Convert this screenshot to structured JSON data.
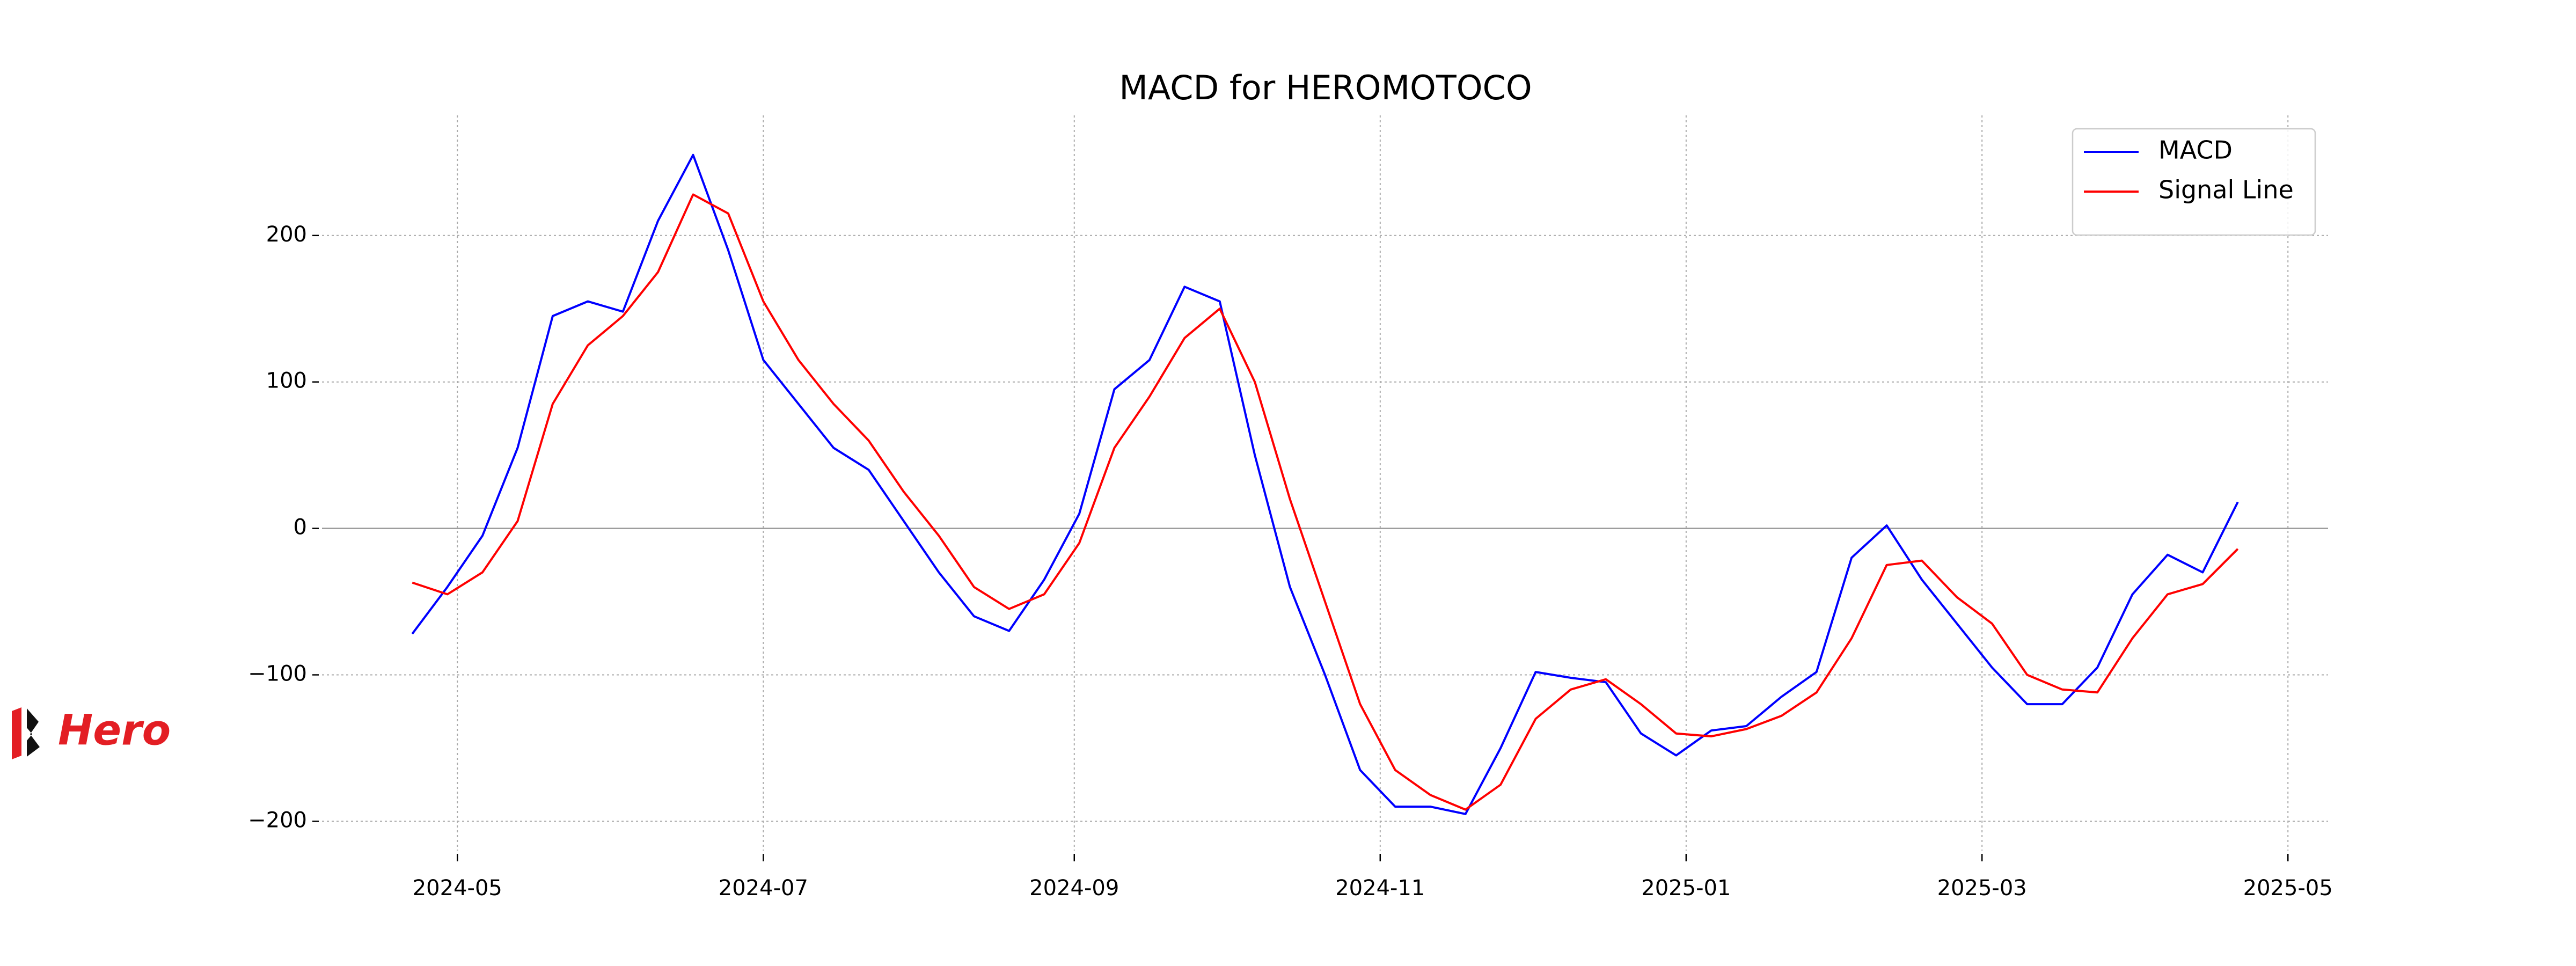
{
  "chart_data": {
    "type": "line",
    "title": "MACD for HEROMOTOCO",
    "logo": "Hero",
    "x": [
      "2024-04-22",
      "2024-04-29",
      "2024-05-06",
      "2024-05-13",
      "2024-05-20",
      "2024-05-27",
      "2024-06-03",
      "2024-06-10",
      "2024-06-17",
      "2024-06-24",
      "2024-07-01",
      "2024-07-08",
      "2024-07-15",
      "2024-07-22",
      "2024-07-29",
      "2024-08-05",
      "2024-08-12",
      "2024-08-19",
      "2024-08-26",
      "2024-09-02",
      "2024-09-09",
      "2024-09-16",
      "2024-09-23",
      "2024-09-30",
      "2024-10-07",
      "2024-10-14",
      "2024-10-21",
      "2024-10-28",
      "2024-11-04",
      "2024-11-11",
      "2024-11-18",
      "2024-11-25",
      "2024-12-02",
      "2024-12-09",
      "2024-12-16",
      "2024-12-23",
      "2024-12-30",
      "2025-01-06",
      "2025-01-13",
      "2025-01-20",
      "2025-01-27",
      "2025-02-03",
      "2025-02-10",
      "2025-02-17",
      "2025-02-24",
      "2025-03-03",
      "2025-03-10",
      "2025-03-17",
      "2025-03-24",
      "2025-03-31",
      "2025-04-07",
      "2025-04-14",
      "2025-04-21"
    ],
    "series": [
      {
        "name": "MACD",
        "color": "#0000ff",
        "values": [
          -72,
          -40,
          -5,
          55,
          145,
          155,
          148,
          210,
          255,
          190,
          115,
          85,
          55,
          40,
          5,
          -30,
          -60,
          -70,
          -35,
          10,
          95,
          115,
          165,
          155,
          50,
          -40,
          -100,
          -165,
          -190,
          -190,
          -195,
          -150,
          -98,
          -102,
          -105,
          -140,
          -155,
          -138,
          -135,
          -115,
          -98,
          -20,
          2,
          -35,
          -65,
          -95,
          -120,
          -120,
          -95,
          -45,
          -18,
          -30,
          18
        ]
      },
      {
        "name": "Signal Line",
        "color": "#ff0000",
        "values": [
          -37,
          -45,
          -30,
          5,
          85,
          125,
          145,
          175,
          228,
          215,
          155,
          115,
          85,
          60,
          25,
          -5,
          -40,
          -55,
          -45,
          -10,
          55,
          90,
          130,
          150,
          100,
          20,
          -50,
          -120,
          -165,
          -182,
          -192,
          -175,
          -130,
          -110,
          -103,
          -120,
          -140,
          -142,
          -137,
          -128,
          -112,
          -75,
          -25,
          -22,
          -47,
          -65,
          -100,
          -110,
          -112,
          -75,
          -45,
          -38,
          -14
        ]
      }
    ],
    "xlim": [
      "2024-04-04",
      "2025-05-09"
    ],
    "xticks": [
      {
        "value": "2024-05-01",
        "label": "2024-05"
      },
      {
        "value": "2024-07-01",
        "label": "2024-07"
      },
      {
        "value": "2024-09-01",
        "label": "2024-09"
      },
      {
        "value": "2024-11-01",
        "label": "2024-11"
      },
      {
        "value": "2025-01-01",
        "label": "2025-01"
      },
      {
        "value": "2025-03-01",
        "label": "2025-03"
      },
      {
        "value": "2025-05-01",
        "label": "2025-05"
      }
    ],
    "ylim": [
      -220,
      282
    ],
    "yticks": [
      {
        "value": -200,
        "label": "−200"
      },
      {
        "value": -100,
        "label": "−100"
      },
      0,
      100,
      200
    ],
    "grid": true,
    "legend": "upper right"
  }
}
